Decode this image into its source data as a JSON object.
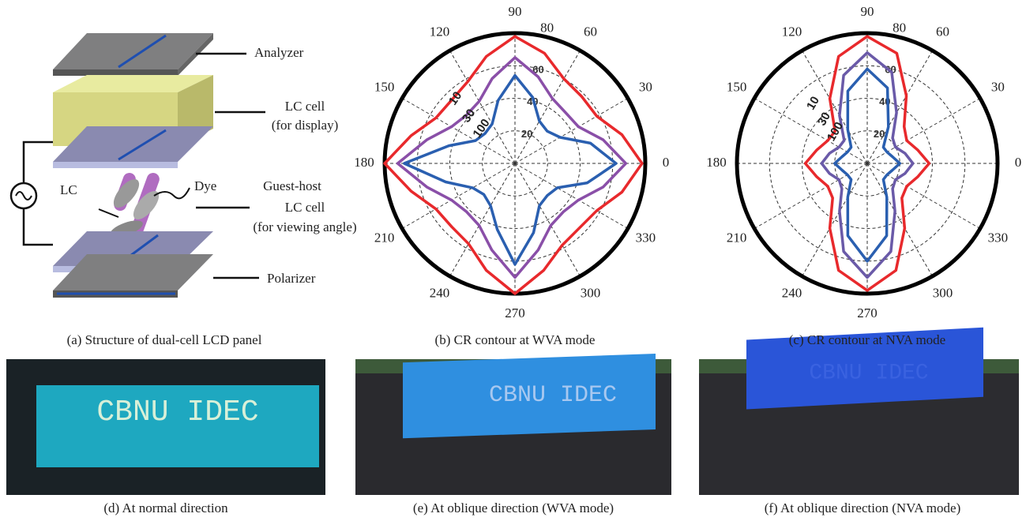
{
  "diagram": {
    "caption": "(a) Structure of dual-cell LCD panel",
    "labels": [
      "Analyzer",
      "LC cell",
      "(for display)",
      "LC",
      "Dye",
      "Guest-host",
      "LC cell",
      "(for viewing angle)",
      "Polarizer"
    ]
  },
  "chart_data": [
    {
      "type": "polar",
      "caption": "(b) CR contour at WVA mode",
      "theta": [
        0,
        15,
        30,
        45,
        60,
        75,
        90,
        105,
        120,
        135,
        150,
        165,
        180,
        195,
        210,
        225,
        240,
        255,
        270,
        285,
        300,
        315,
        330,
        345
      ],
      "thetaticks": [
        0,
        30,
        60,
        90,
        120,
        150,
        180,
        210,
        240,
        270,
        300,
        330
      ],
      "rlim": [
        0,
        80
      ],
      "rticks": [
        20,
        40,
        60,
        80
      ],
      "grid": true,
      "series": [
        {
          "name": "10",
          "color": "#e8292c",
          "values": [
            78,
            68,
            58,
            58,
            60,
            70,
            78,
            68,
            58,
            55,
            56,
            66,
            80,
            66,
            56,
            55,
            57,
            68,
            80,
            68,
            58,
            56,
            58,
            68
          ]
        },
        {
          "name": "30",
          "color": "#8a4fa8",
          "values": [
            68,
            56,
            45,
            44,
            46,
            55,
            65,
            54,
            44,
            42,
            45,
            56,
            72,
            56,
            45,
            42,
            44,
            55,
            70,
            55,
            44,
            42,
            45,
            56
          ]
        },
        {
          "name": "100",
          "color": "#2a5fb0",
          "values": [
            62,
            48,
            32,
            28,
            30,
            42,
            54,
            40,
            28,
            26,
            28,
            42,
            68,
            44,
            30,
            27,
            30,
            42,
            62,
            44,
            30,
            28,
            30,
            46
          ]
        }
      ]
    },
    {
      "type": "polar",
      "caption": "(c) CR contour at NVA mode",
      "theta": [
        0,
        15,
        30,
        45,
        60,
        75,
        90,
        105,
        120,
        135,
        150,
        165,
        180,
        195,
        210,
        225,
        240,
        255,
        270,
        285,
        300,
        315,
        330,
        345
      ],
      "thetaticks": [
        0,
        30,
        60,
        90,
        120,
        150,
        180,
        210,
        240,
        270,
        300,
        330
      ],
      "rlim": [
        0,
        80
      ],
      "rticks": [
        20,
        40,
        60,
        80
      ],
      "grid": true,
      "series": [
        {
          "name": "10",
          "color": "#e8292c",
          "values": [
            38,
            32,
            28,
            32,
            48,
            70,
            78,
            68,
            46,
            28,
            28,
            32,
            38,
            32,
            28,
            30,
            46,
            68,
            78,
            68,
            46,
            30,
            28,
            32
          ]
        },
        {
          "name": "30",
          "color": "#6a5aa8",
          "values": [
            28,
            24,
            20,
            22,
            36,
            58,
            68,
            56,
            34,
            20,
            20,
            24,
            28,
            24,
            20,
            22,
            34,
            56,
            70,
            56,
            34,
            22,
            20,
            24
          ]
        },
        {
          "name": "100",
          "color": "#2a5fb0",
          "values": [
            20,
            16,
            14,
            14,
            26,
            48,
            58,
            46,
            24,
            14,
            14,
            16,
            20,
            16,
            14,
            14,
            24,
            46,
            60,
            46,
            24,
            14,
            14,
            16
          ]
        }
      ]
    }
  ],
  "photos": [
    {
      "caption": "(d) At normal direction",
      "screen_text": "CBNU IDEC"
    },
    {
      "caption": "(e) At oblique direction (WVA mode)",
      "screen_text": "CBNU IDEC"
    },
    {
      "caption": "(f) At oblique direction (NVA mode)",
      "screen_text": "CBNU IDEC"
    }
  ]
}
